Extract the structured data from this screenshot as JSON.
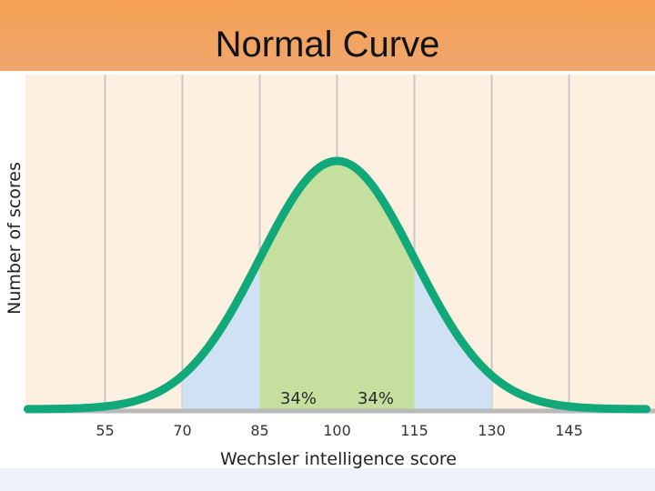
{
  "slide": {
    "title": "Normal Curve"
  },
  "colors": {
    "title_bar_top": "#f5a052",
    "plot_background": "#fdf0e0",
    "curve": "#11a87a",
    "shade_one_sd": "#c5df9f",
    "shade_two_sd": "#cfe1f2",
    "grid": "#c8c8c8",
    "axis": "#b9b9b9"
  },
  "chart_data": {
    "type": "area",
    "title": "",
    "xlabel": "Wechsler intelligence score",
    "ylabel": "Number of scores",
    "x_ticks": [
      55,
      70,
      85,
      100,
      115,
      130,
      145
    ],
    "xlim": [
      40,
      160
    ],
    "distribution": {
      "mean": 100,
      "sd": 15
    },
    "shaded_regions": [
      {
        "from": 70,
        "to": 85,
        "color": "shade_two_sd"
      },
      {
        "from": 85,
        "to": 100,
        "color": "shade_one_sd",
        "label": "34%"
      },
      {
        "from": 100,
        "to": 115,
        "color": "shade_one_sd",
        "label": "34%"
      },
      {
        "from": 115,
        "to": 130,
        "color": "shade_two_sd"
      }
    ],
    "grid": true
  }
}
